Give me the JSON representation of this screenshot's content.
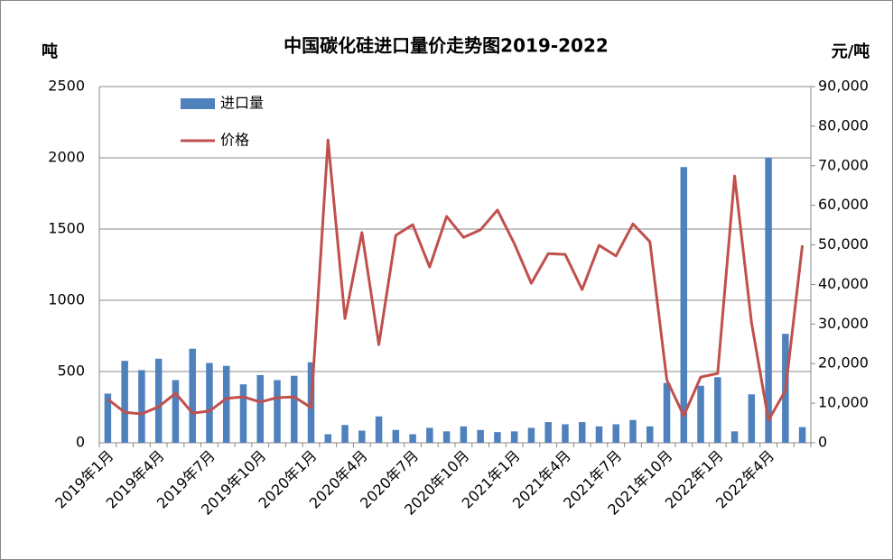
{
  "chart_data": {
    "type": "bar_line",
    "title": "中国碳化硅进口量价走势图2019-2022",
    "y_label": "吨",
    "y2_label": "元/吨",
    "categories": [
      "2019年1月",
      null,
      null,
      "2019年4月",
      null,
      null,
      "2019年7月",
      null,
      null,
      "2019年10月",
      null,
      null,
      "2020年1月",
      null,
      null,
      "2020年4月",
      null,
      null,
      "2020年7月",
      null,
      null,
      "2020年10月",
      null,
      null,
      "2021年1月",
      null,
      null,
      "2021年4月",
      null,
      null,
      "2021年7月",
      null,
      null,
      "2021年10月",
      null,
      null,
      "2022年1月",
      null,
      null,
      "2022年4月",
      null,
      null
    ],
    "series": [
      {
        "name": "进口量",
        "color": "#4f81bd",
        "axis": "y",
        "values": [
          345,
          575,
          510,
          590,
          440,
          660,
          560,
          540,
          410,
          475,
          440,
          470,
          565,
          60,
          125,
          85,
          185,
          90,
          60,
          105,
          80,
          115,
          90,
          75,
          80,
          105,
          145,
          130,
          145,
          115,
          130,
          160,
          115,
          420,
          1935,
          400,
          460,
          80,
          340,
          2000,
          765,
          110
        ]
      },
      {
        "name": "价格",
        "color": "#c0504d",
        "axis": "y2",
        "values": [
          11000,
          7700,
          7300,
          9100,
          12500,
          7500,
          8000,
          11200,
          11600,
          10300,
          11400,
          11600,
          8900,
          76500,
          31400,
          53100,
          24800,
          52400,
          55100,
          44400,
          57200,
          51900,
          53800,
          58800,
          50300,
          40300,
          47800,
          47600,
          38700,
          49900,
          47200,
          55300,
          50800,
          15900,
          6800,
          16600,
          17500,
          67400,
          30300,
          5700,
          13200,
          49900
        ]
      }
    ],
    "ylim": [
      0,
      2500
    ],
    "yticks": [
      0,
      500,
      1000,
      1500,
      2000,
      2500
    ],
    "y2lim": [
      0,
      90000
    ],
    "y2ticks": [
      0,
      {
        "value": 10000,
        "label": "10,000"
      },
      {
        "value": 20000,
        "label": "20,000"
      },
      {
        "value": 30000,
        "label": "30,000"
      },
      {
        "value": 40000,
        "label": "40,000"
      },
      {
        "value": 50000,
        "label": "50,000"
      },
      {
        "value": 60000,
        "label": "60,000"
      },
      {
        "value": 70000,
        "label": "70,000"
      },
      {
        "value": 80000,
        "label": "80,000"
      },
      {
        "value": 90000,
        "label": "90,000"
      }
    ],
    "grid": true,
    "legend": "top-left"
  }
}
